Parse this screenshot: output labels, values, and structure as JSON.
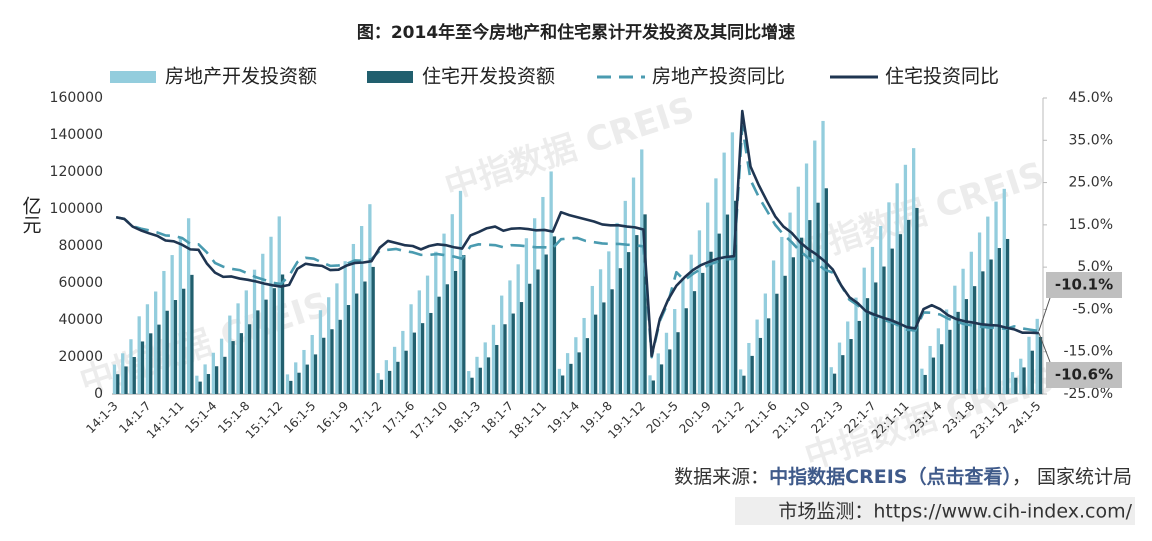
{
  "chart_data": {
    "type": "combo",
    "title": "图：2014年至今房地产和住宅累计开发投资及其同比增速",
    "y_label": "亿元",
    "watermark": "中指数据 CREIS",
    "categories": [
      "14:1-3",
      null,
      null,
      null,
      "14:1-7",
      null,
      null,
      null,
      "14:1-11",
      null,
      null,
      null,
      "15:1-4",
      null,
      null,
      null,
      "15:1-8",
      null,
      null,
      null,
      "15:1-12",
      null,
      null,
      null,
      "16:1-5",
      null,
      null,
      null,
      "16:1-9",
      null,
      null,
      null,
      "17:1-2",
      null,
      null,
      null,
      "17:1-6",
      null,
      null,
      null,
      "17:1-10",
      null,
      null,
      null,
      "18:1-3",
      null,
      null,
      null,
      "18:1-7",
      null,
      null,
      null,
      "18:1-11",
      null,
      null,
      null,
      "19:1-4",
      null,
      null,
      null,
      "19:1-8",
      null,
      null,
      null,
      "19:1-12",
      null,
      null,
      null,
      "20:1-5",
      null,
      null,
      null,
      "20:1-9",
      null,
      null,
      null,
      "21:1-2",
      null,
      null,
      null,
      "21:1-6",
      null,
      null,
      null,
      "21:1-10",
      null,
      null,
      null,
      "22:1-3",
      null,
      null,
      null,
      "22:1-7",
      null,
      null,
      null,
      "22:1-11",
      null,
      null,
      null,
      "23:1-4",
      null,
      null,
      null,
      "23:1-8",
      null,
      null,
      null,
      "23:1-12",
      null,
      null,
      null,
      "24:1-5"
    ],
    "series": [
      {
        "name": "房地产开发投资额",
        "type": "bar",
        "axis": "y",
        "color": "#93cddd",
        "values": [
          15900,
          22000,
          29600,
          42000,
          48500,
          55400,
          66500,
          75100,
          84100,
          95000,
          9900,
          16000,
          22300,
          29900,
          42400,
          49000,
          56000,
          67200,
          75800,
          85000,
          96000,
          10600,
          17100,
          23800,
          31900,
          45300,
          52300,
          59800,
          71800,
          81100,
          90800,
          102600,
          11300,
          18300,
          25500,
          34100,
          48500,
          56000,
          64000,
          76900,
          86700,
          97200,
          109800,
          12400,
          20100,
          27900,
          37400,
          53200,
          61400,
          70100,
          84200,
          95000,
          106500,
          120300,
          13600,
          22100,
          30700,
          41100,
          58400,
          67400,
          77100,
          92500,
          104400,
          117000,
          132200,
          10100,
          21960,
          33100,
          45920,
          62780,
          75330,
          88450,
          103480,
          116560,
          130490,
          141440,
          13290,
          27580,
          40240,
          54320,
          72180,
          84900,
          98060,
          112060,
          124600,
          137000,
          147600,
          14500,
          27800,
          39200,
          52100,
          68300,
          79500,
          90800,
          103600,
          113900,
          123900,
          132900,
          13700,
          25970,
          35500,
          45700,
          58550,
          67700,
          76900,
          87300,
          95900,
          104000,
          110900,
          11840,
          19080,
          30930,
          40630
        ]
      },
      {
        "name": "住宅开发投资额",
        "type": "bar",
        "axis": "y",
        "color": "#215f6e",
        "values": [
          10700,
          14900,
          20000,
          28400,
          32800,
          37500,
          45000,
          50800,
          56900,
          64400,
          6700,
          10800,
          15000,
          20100,
          28600,
          32900,
          37700,
          45200,
          51000,
          57200,
          64600,
          7100,
          11500,
          15900,
          21400,
          30400,
          35000,
          40100,
          48100,
          54300,
          60800,
          68700,
          7700,
          12500,
          17400,
          23400,
          33200,
          38300,
          43800,
          52600,
          59300,
          66500,
          75100,
          8800,
          14200,
          19800,
          26500,
          37700,
          43500,
          49700,
          59600,
          67300,
          75400,
          85200,
          10000,
          16300,
          22500,
          30200,
          42900,
          49500,
          56600,
          68000,
          76700,
          85900,
          97100,
          7300,
          16000,
          24100,
          33400,
          46350,
          55600,
          65450,
          76900,
          86700,
          97000,
          104450,
          9900,
          20600,
          30300,
          40900,
          54200,
          63900,
          73900,
          84500,
          94000,
          103400,
          111200,
          11000,
          21000,
          29700,
          39500,
          51800,
          60300,
          68900,
          78600,
          86400,
          94100,
          100600,
          10300,
          19700,
          26900,
          34700,
          44400,
          51300,
          58300,
          66300,
          72700,
          78900,
          83800,
          8820,
          14370,
          23410,
          30820
        ]
      },
      {
        "name": "房地产投资同比",
        "type": "line",
        "axis": "y2",
        "color": "#4a9bb0",
        "dash": true,
        "values": [
          16.8,
          16.4,
          14.7,
          14.1,
          13.7,
          13.2,
          12.5,
          12.4,
          11.9,
          10.5,
          10.4,
          8.5,
          6.0,
          5.1,
          4.6,
          4.3,
          3.5,
          2.6,
          2.0,
          1.3,
          1.0,
          3.0,
          6.2,
          7.2,
          7.0,
          6.1,
          5.3,
          5.4,
          5.8,
          6.6,
          6.5,
          6.9,
          8.9,
          9.1,
          9.3,
          8.8,
          8.5,
          7.9,
          7.9,
          8.1,
          7.8,
          7.5,
          7.0,
          9.9,
          10.4,
          10.3,
          10.2,
          9.7,
          10.2,
          10.1,
          9.9,
          9.7,
          9.7,
          9.5,
          11.6,
          11.8,
          11.9,
          11.2,
          10.9,
          10.6,
          10.5,
          10.5,
          10.3,
          10.2,
          9.9,
          -16.3,
          -7.7,
          -3.3,
          3.8,
          1.9,
          3.4,
          4.6,
          5.6,
          6.3,
          6.8,
          7.0,
          38.3,
          25.6,
          21.6,
          18.3,
          15.0,
          12.7,
          10.9,
          8.8,
          7.2,
          6.0,
          4.4,
          3.7,
          0.7,
          -2.7,
          -4.0,
          -5.4,
          -6.4,
          -7.4,
          -8.0,
          -8.8,
          -9.8,
          -10.0,
          -5.7,
          -5.8,
          -6.2,
          -7.2,
          -7.9,
          -8.5,
          -8.8,
          -9.1,
          -9.3,
          -9.4,
          -9.6,
          -9.0,
          -9.5,
          -9.8,
          -10.1
        ],
        "value_labels": [
          null,
          null,
          null,
          null,
          null,
          null,
          null,
          null,
          null,
          null,
          null,
          null,
          null,
          null,
          null,
          null,
          null,
          null,
          null,
          null,
          null,
          null,
          null,
          null,
          null,
          null,
          null,
          null,
          null,
          null,
          null,
          null,
          null,
          null,
          null,
          null,
          null,
          null,
          null,
          null,
          null,
          null,
          null,
          null,
          null,
          null,
          null,
          null,
          null,
          null,
          null,
          null,
          null,
          null,
          null,
          null,
          null,
          null,
          null,
          null,
          null,
          null,
          null,
          null,
          null,
          null,
          null,
          null,
          null,
          null,
          null,
          null,
          null,
          null,
          null,
          null,
          null,
          null,
          null,
          null,
          null,
          null,
          null,
          null,
          null,
          null,
          null,
          null,
          null,
          null,
          null,
          null,
          null,
          null,
          null,
          null,
          null,
          null,
          null,
          null,
          null,
          null,
          null,
          null,
          null,
          null,
          null,
          null,
          null,
          null,
          null,
          null,
          "-10.1%"
        ]
      },
      {
        "name": "住宅投资同比",
        "type": "line",
        "axis": "y2",
        "color": "#1f3551",
        "dash": false,
        "values": [
          16.8,
          16.4,
          14.6,
          13.7,
          13.0,
          12.4,
          11.3,
          11.1,
          10.3,
          9.2,
          9.1,
          5.9,
          3.7,
          2.7,
          2.8,
          2.3,
          2.0,
          1.6,
          1.1,
          0.7,
          0.4,
          0.8,
          4.6,
          5.8,
          5.5,
          5.3,
          4.3,
          4.4,
          5.4,
          6.0,
          6.1,
          6.4,
          9.6,
          11.2,
          10.7,
          10.2,
          10.0,
          9.2,
          10.0,
          10.4,
          10.2,
          9.7,
          9.4,
          12.5,
          13.3,
          14.2,
          14.6,
          13.6,
          14.1,
          14.2,
          14.0,
          13.7,
          13.8,
          13.4,
          18.0,
          17.3,
          16.8,
          16.3,
          15.8,
          15.1,
          14.9,
          14.9,
          14.6,
          14.4,
          13.9,
          -16.0,
          -7.2,
          -2.7,
          0.6,
          2.6,
          4.3,
          5.5,
          6.3,
          7.0,
          7.4,
          7.6,
          41.9,
          28.8,
          24.4,
          20.6,
          17.0,
          14.6,
          13.1,
          10.9,
          9.3,
          8.0,
          6.4,
          4.4,
          0.7,
          -2.1,
          -3.5,
          -5.4,
          -6.2,
          -6.9,
          -7.5,
          -8.3,
          -9.2,
          -9.5,
          -4.9,
          -4.0,
          -4.9,
          -6.4,
          -7.3,
          -7.8,
          -8.1,
          -8.5,
          -8.7,
          -8.8,
          -9.3,
          -9.7,
          -10.5,
          -10.5,
          -10.6
        ],
        "value_labels": [
          null,
          null,
          null,
          null,
          null,
          null,
          null,
          null,
          null,
          null,
          null,
          null,
          null,
          null,
          null,
          null,
          null,
          null,
          null,
          null,
          null,
          null,
          null,
          null,
          null,
          null,
          null,
          null,
          null,
          null,
          null,
          null,
          null,
          null,
          null,
          null,
          null,
          null,
          null,
          null,
          null,
          null,
          null,
          null,
          null,
          null,
          null,
          null,
          null,
          null,
          null,
          null,
          null,
          null,
          null,
          null,
          null,
          null,
          null,
          null,
          null,
          null,
          null,
          null,
          null,
          null,
          null,
          null,
          null,
          null,
          null,
          null,
          null,
          null,
          null,
          null,
          null,
          null,
          null,
          null,
          null,
          null,
          null,
          null,
          null,
          null,
          null,
          null,
          null,
          null,
          null,
          null,
          null,
          null,
          null,
          null,
          null,
          null,
          null,
          null,
          null,
          null,
          null,
          null,
          null,
          null,
          null,
          null,
          null,
          null,
          null,
          null,
          "-10.6%"
        ]
      }
    ],
    "ylim": [
      0,
      160000
    ],
    "yticks": [
      0,
      20000,
      40000,
      60000,
      80000,
      100000,
      120000,
      140000,
      160000
    ],
    "y2lim": [
      -25,
      45
    ],
    "y2ticks": [
      {
        "value": -25,
        "label": "-25.0%"
      },
      {
        "value": -15,
        "label": "-15.0%"
      },
      {
        "value": -5,
        "label": "-5.0%"
      },
      {
        "value": 5,
        "label": "5.0%"
      },
      {
        "value": 15,
        "label": "15.0%"
      },
      {
        "value": 25,
        "label": "25.0%"
      },
      {
        "value": 35,
        "label": "35.0%"
      },
      {
        "value": 45,
        "label": "45.0%"
      }
    ],
    "grid": false,
    "legend": "top"
  },
  "source": {
    "prefix": "数据来源：",
    "link": "中指数据CREIS（点击查看）",
    "suffix": "，  国家统计局",
    "monitor": "市场监测：https://www.cih-index.com/"
  }
}
